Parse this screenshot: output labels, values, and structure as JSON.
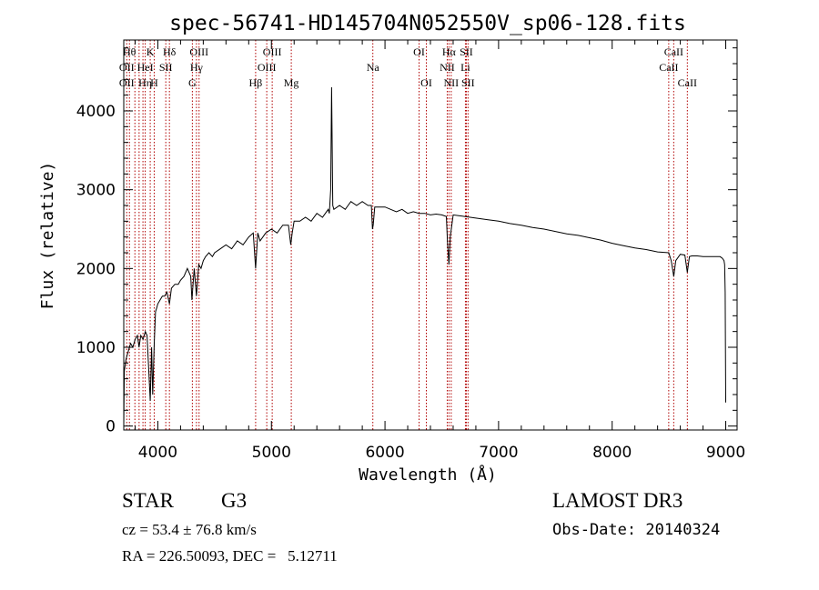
{
  "chart_data": {
    "type": "line",
    "title": "spec-56741-HD145704N052550V_sp06-128.fits",
    "xlabel": "Wavelength (Å)",
    "ylabel": "Flux (relative)",
    "xlim": [
      3700,
      9100
    ],
    "ylim": [
      -50,
      4900
    ],
    "xticks": [
      4000,
      5000,
      6000,
      7000,
      8000,
      9000
    ],
    "xtick_labels": [
      "4000",
      "5000",
      "6000",
      "7000",
      "8000",
      "9000"
    ],
    "yticks": [
      0,
      1000,
      2000,
      3000,
      4000
    ],
    "ytick_labels": [
      "0",
      "1000",
      "2000",
      "3000",
      "4000"
    ],
    "x_minor_step": 200,
    "y_minor_step": 200,
    "grid": false,
    "series": [
      {
        "name": "spectrum",
        "color": "#000000",
        "x": [
          3700,
          3705,
          3720,
          3740,
          3760,
          3780,
          3800,
          3820,
          3835,
          3850,
          3870,
          3890,
          3905,
          3920,
          3933,
          3945,
          3955,
          3968,
          3980,
          3990,
          4000,
          4020,
          4040,
          4060,
          4080,
          4102,
          4120,
          4150,
          4180,
          4200,
          4230,
          4260,
          4290,
          4300,
          4320,
          4340,
          4360,
          4380,
          4400,
          4420,
          4450,
          4480,
          4500,
          4550,
          4600,
          4650,
          4700,
          4750,
          4800,
          4840,
          4861,
          4880,
          4900,
          4950,
          5000,
          5050,
          5100,
          5150,
          5170,
          5183,
          5200,
          5250,
          5300,
          5350,
          5400,
          5450,
          5500,
          5510,
          5522,
          5530,
          5540,
          5550,
          5600,
          5650,
          5700,
          5750,
          5800,
          5850,
          5880,
          5890,
          5896,
          5910,
          5950,
          6000,
          6050,
          6100,
          6150,
          6200,
          6250,
          6300,
          6350,
          6400,
          6450,
          6500,
          6540,
          6550,
          6563,
          6575,
          6600,
          6650,
          6700,
          6800,
          6900,
          7000,
          7100,
          7200,
          7300,
          7400,
          7500,
          7600,
          7700,
          7800,
          7900,
          8000,
          8100,
          8200,
          8300,
          8400,
          8498,
          8520,
          8542,
          8560,
          8600,
          8640,
          8662,
          8680,
          8700,
          8750,
          8800,
          8850,
          8900,
          8950,
          8970,
          8985,
          8990,
          8995,
          9000
        ],
        "values": [
          0,
          700,
          850,
          950,
          1050,
          1000,
          1100,
          1150,
          1000,
          1150,
          1100,
          1200,
          1150,
          700,
          320,
          1000,
          400,
          1050,
          1450,
          1500,
          1550,
          1600,
          1650,
          1650,
          1700,
          1550,
          1750,
          1800,
          1800,
          1850,
          1900,
          2000,
          1900,
          1600,
          2000,
          1650,
          2050,
          2000,
          2100,
          2150,
          2200,
          2150,
          2200,
          2250,
          2300,
          2250,
          2350,
          2300,
          2400,
          2450,
          2000,
          2450,
          2350,
          2450,
          2500,
          2450,
          2550,
          2550,
          2300,
          2450,
          2600,
          2600,
          2650,
          2600,
          2700,
          2650,
          2750,
          2700,
          3000,
          4300,
          2800,
          2750,
          2800,
          2750,
          2850,
          2800,
          2850,
          2800,
          2800,
          2500,
          2550,
          2780,
          2780,
          2780,
          2750,
          2720,
          2750,
          2700,
          2720,
          2700,
          2700,
          2680,
          2690,
          2680,
          2660,
          2350,
          2050,
          2400,
          2680,
          2670,
          2660,
          2640,
          2620,
          2600,
          2570,
          2550,
          2520,
          2500,
          2470,
          2440,
          2420,
          2390,
          2360,
          2320,
          2290,
          2260,
          2240,
          2210,
          2200,
          2100,
          1900,
          2100,
          2180,
          2170,
          1950,
          2150,
          2160,
          2160,
          2150,
          2150,
          2150,
          2150,
          2130,
          2100,
          2050,
          1700,
          300
        ]
      }
    ],
    "line_markers": {
      "color": "#b00000",
      "lines": [
        {
          "x": 3750,
          "label": "Hθ",
          "row": 1
        },
        {
          "x": 3726,
          "label": "OII",
          "row": 2
        },
        {
          "x": 3726,
          "label": "OII",
          "row": 3
        },
        {
          "x": 3798,
          "label": "",
          "row": 0
        },
        {
          "x": 3835,
          "label": "",
          "row": 0
        },
        {
          "x": 3869,
          "label": "",
          "row": 0
        },
        {
          "x": 3889,
          "label": "HeI",
          "row": 2
        },
        {
          "x": 3889,
          "label": "Hη",
          "row": 3
        },
        {
          "x": 3933,
          "label": "K",
          "row": 1
        },
        {
          "x": 3968,
          "label": "H",
          "row": 3
        },
        {
          "x": 4070,
          "label": "SII",
          "row": 2
        },
        {
          "x": 4102,
          "label": "Hδ",
          "row": 1
        },
        {
          "x": 4304,
          "label": "G",
          "row": 3
        },
        {
          "x": 4340,
          "label": "Hγ",
          "row": 2
        },
        {
          "x": 4363,
          "label": "OIII",
          "row": 1
        },
        {
          "x": 4861,
          "label": "Hβ",
          "row": 3
        },
        {
          "x": 4959,
          "label": "OIII",
          "row": 2
        },
        {
          "x": 5007,
          "label": "OIII",
          "row": 1
        },
        {
          "x": 5175,
          "label": "Mg",
          "row": 3
        },
        {
          "x": 5893,
          "label": "Na",
          "row": 2
        },
        {
          "x": 6300,
          "label": "OI",
          "row": 1
        },
        {
          "x": 6364,
          "label": "OI",
          "row": 3
        },
        {
          "x": 6548,
          "label": "NII",
          "row": 2
        },
        {
          "x": 6563,
          "label": "Hα",
          "row": 1
        },
        {
          "x": 6583,
          "label": "NII",
          "row": 3
        },
        {
          "x": 6708,
          "label": "Li",
          "row": 2
        },
        {
          "x": 6716,
          "label": "SII",
          "row": 1
        },
        {
          "x": 6731,
          "label": "SII",
          "row": 3
        },
        {
          "x": 8498,
          "label": "CaII",
          "row": 2
        },
        {
          "x": 8542,
          "label": "CaII",
          "row": 1
        },
        {
          "x": 8662,
          "label": "CaII",
          "row": 3
        }
      ]
    }
  },
  "info": {
    "object_type": "STAR",
    "subclass": "G3",
    "survey": "LAMOST DR3",
    "cz": "cz = 53.4 ± 76.8 km/s",
    "obs_date": "Obs-Date: 20140324",
    "radec": "RA = 226.50093, DEC =   5.12711"
  }
}
